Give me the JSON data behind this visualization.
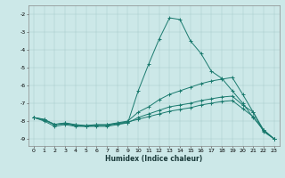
{
  "xlabel": "Humidex (Indice chaleur)",
  "ylabel": "",
  "bg_color": "#cce8e8",
  "line_color": "#1a7a6e",
  "xlim": [
    -0.5,
    23.5
  ],
  "ylim": [
    -9.4,
    -1.5
  ],
  "yticks": [
    -2,
    -3,
    -4,
    -5,
    -6,
    -7,
    -8,
    -9
  ],
  "xticks": [
    0,
    1,
    2,
    3,
    4,
    5,
    6,
    7,
    8,
    9,
    10,
    11,
    12,
    13,
    14,
    15,
    16,
    17,
    18,
    19,
    20,
    21,
    22,
    23
  ],
  "series": [
    {
      "x": [
        0,
        1,
        2,
        3,
        4,
        5,
        6,
        7,
        8,
        9,
        10,
        11,
        12,
        13,
        14,
        15,
        16,
        17,
        18,
        19,
        20,
        21,
        22,
        23
      ],
      "y": [
        -7.8,
        -8.0,
        -8.3,
        -8.2,
        -8.3,
        -8.3,
        -8.3,
        -8.3,
        -8.2,
        -8.1,
        -6.3,
        -4.8,
        -3.4,
        -2.2,
        -2.3,
        -3.5,
        -4.2,
        -5.2,
        -5.6,
        -6.3,
        -7.0,
        -7.8,
        -8.5,
        -9.0
      ],
      "marker": "+"
    },
    {
      "x": [
        0,
        1,
        2,
        3,
        4,
        5,
        6,
        7,
        8,
        9,
        10,
        11,
        12,
        13,
        14,
        15,
        16,
        17,
        18,
        19,
        20,
        21,
        22,
        23
      ],
      "y": [
        -7.8,
        -7.9,
        -8.2,
        -8.1,
        -8.2,
        -8.25,
        -8.2,
        -8.2,
        -8.1,
        -8.0,
        -7.5,
        -7.2,
        -6.8,
        -6.5,
        -6.3,
        -6.1,
        -5.9,
        -5.75,
        -5.65,
        -5.55,
        -6.5,
        -7.5,
        -8.5,
        -9.0
      ],
      "marker": "+"
    },
    {
      "x": [
        0,
        1,
        2,
        3,
        4,
        5,
        6,
        7,
        8,
        9,
        10,
        11,
        12,
        13,
        14,
        15,
        16,
        17,
        18,
        19,
        20,
        21,
        22,
        23
      ],
      "y": [
        -7.8,
        -7.95,
        -8.2,
        -8.15,
        -8.25,
        -8.3,
        -8.25,
        -8.25,
        -8.15,
        -8.1,
        -7.8,
        -7.6,
        -7.4,
        -7.2,
        -7.1,
        -7.0,
        -6.85,
        -6.75,
        -6.65,
        -6.6,
        -7.1,
        -7.5,
        -8.6,
        -9.0
      ],
      "marker": "+"
    },
    {
      "x": [
        0,
        1,
        2,
        3,
        4,
        5,
        6,
        7,
        8,
        9,
        10,
        11,
        12,
        13,
        14,
        15,
        16,
        17,
        18,
        19,
        20,
        21,
        22,
        23
      ],
      "y": [
        -7.8,
        -7.92,
        -8.18,
        -8.12,
        -8.22,
        -8.27,
        -8.22,
        -8.22,
        -8.12,
        -8.05,
        -7.9,
        -7.75,
        -7.6,
        -7.45,
        -7.35,
        -7.25,
        -7.1,
        -7.0,
        -6.9,
        -6.85,
        -7.3,
        -7.75,
        -8.55,
        -9.0
      ],
      "marker": "+"
    }
  ]
}
